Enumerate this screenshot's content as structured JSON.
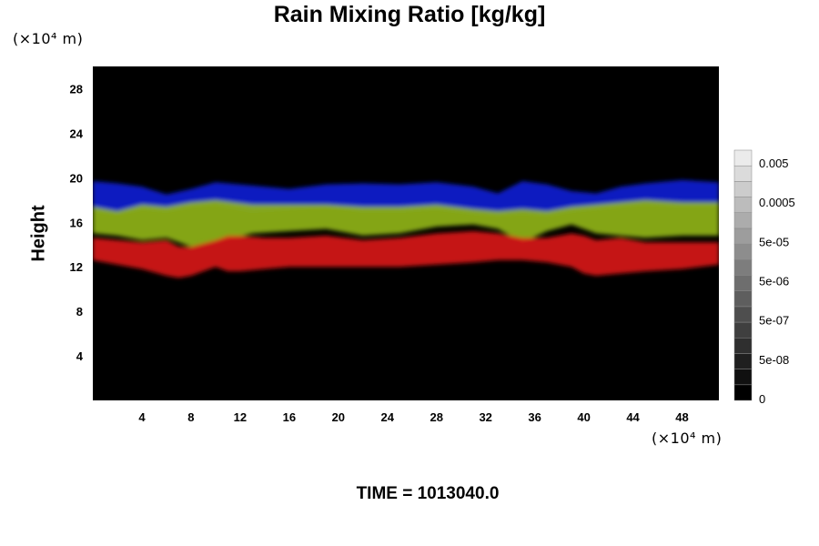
{
  "chart_data": {
    "type": "heatmap",
    "title": "Rain Mixing Ratio [kg/kg]",
    "ylabel": "Height",
    "y_unit": "(×10⁴ m)",
    "x_unit": "(×10⁴ m)",
    "xlim": [
      0,
      51
    ],
    "ylim": [
      0,
      30
    ],
    "x_ticks": [
      "4",
      "8",
      "12",
      "16",
      "20",
      "24",
      "28",
      "32",
      "36",
      "40",
      "44",
      "48"
    ],
    "y_ticks": [
      "4",
      "8",
      "12",
      "16",
      "20",
      "24",
      "28"
    ],
    "colorbar_labels": [
      "0.005",
      "0.0005",
      "5e-05",
      "5e-06",
      "5e-07",
      "5e-08",
      "0"
    ],
    "footer": "TIME = 1013040.0",
    "bands": [
      {
        "color": "#0a1fd0",
        "x": [
          0,
          2,
          4,
          6,
          8,
          10,
          13,
          16,
          19,
          22,
          25,
          28,
          31,
          33,
          35,
          37,
          39,
          41,
          43,
          45,
          48,
          51
        ],
        "top": [
          19.7,
          19.5,
          19.2,
          18.5,
          19.0,
          19.6,
          19.3,
          19.0,
          19.4,
          19.5,
          19.4,
          19.6,
          19.2,
          18.6,
          19.7,
          19.4,
          18.8,
          18.6,
          19.2,
          19.5,
          19.8,
          19.6
        ],
        "bot": [
          17.0,
          16.7,
          17.2,
          17.0,
          17.4,
          17.6,
          17.0,
          17.2,
          17.4,
          17.0,
          17.0,
          17.2,
          16.8,
          16.6,
          16.8,
          16.6,
          17.0,
          17.2,
          17.4,
          17.6,
          17.4,
          17.4
        ]
      },
      {
        "color": "#8fb317",
        "x": [
          0,
          2,
          4,
          6,
          8,
          10,
          13,
          16,
          19,
          22,
          25,
          28,
          31,
          33,
          35,
          37,
          39,
          41,
          43,
          45,
          48,
          51
        ],
        "top": [
          17.4,
          17.0,
          17.6,
          17.4,
          17.8,
          18.0,
          17.6,
          17.6,
          17.6,
          17.4,
          17.4,
          17.6,
          17.2,
          17.0,
          17.2,
          17.0,
          17.4,
          17.6,
          17.8,
          18.0,
          17.8,
          17.8
        ],
        "bot": [
          15.0,
          14.8,
          14.4,
          14.6,
          13.8,
          14.2,
          15.0,
          15.2,
          15.4,
          14.8,
          15.0,
          15.6,
          15.8,
          15.4,
          14.2,
          15.2,
          15.8,
          15.0,
          14.8,
          14.6,
          14.8,
          14.8
        ]
      },
      {
        "color": "#d61616",
        "x": [
          0,
          2,
          4,
          6,
          7,
          8,
          10,
          11,
          12,
          14,
          16,
          19,
          22,
          25,
          28,
          31,
          33,
          35,
          37,
          39,
          40,
          41,
          43,
          45,
          48,
          51
        ],
        "top": [
          14.6,
          14.4,
          14.2,
          14.4,
          13.8,
          13.8,
          14.4,
          14.8,
          14.8,
          14.6,
          14.6,
          14.8,
          14.4,
          14.6,
          15.0,
          15.2,
          15.0,
          14.6,
          14.6,
          15.0,
          14.8,
          14.4,
          14.6,
          14.2,
          14.2,
          14.2
        ],
        "bot": [
          12.6,
          12.2,
          11.8,
          11.2,
          11.0,
          11.2,
          12.0,
          11.6,
          11.6,
          11.8,
          12.0,
          12.0,
          12.0,
          12.0,
          12.2,
          12.4,
          12.6,
          12.6,
          12.4,
          12.0,
          11.4,
          11.2,
          11.4,
          11.6,
          11.8,
          12.2
        ]
      }
    ]
  }
}
